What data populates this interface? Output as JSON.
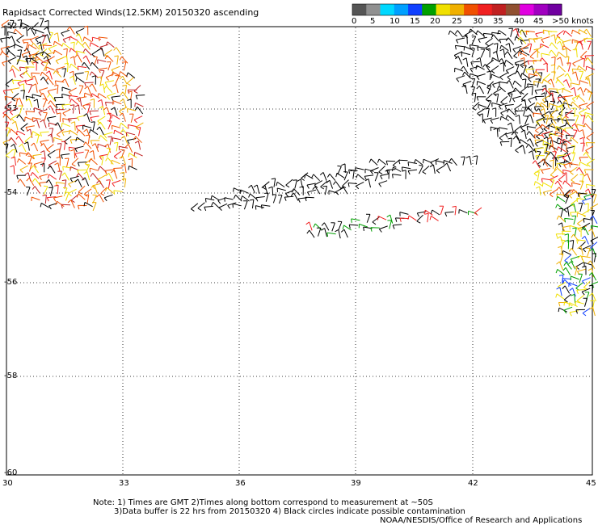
{
  "title": "Rapidsact Corrected Winds(12.5KM) 20150320 ascending",
  "color_scale": {
    "colors": [
      "#555555",
      "#909090",
      "#00d8ff",
      "#00a0ff",
      "#1040ff",
      "#00a000",
      "#f0e000",
      "#f0b000",
      "#f05000",
      "#f02020",
      "#c02020",
      "#905030",
      "#e000e0",
      "#a000c0",
      "#7000a0"
    ],
    "labels": [
      "0",
      "5",
      "10",
      "15",
      "20",
      "25",
      "30",
      "35",
      "40",
      "45",
      ">50 knots"
    ]
  },
  "map": {
    "lat_labels": [
      "-52",
      "-53",
      "-54",
      "-56",
      "-58",
      "-60"
    ],
    "lon_labels": [
      "30",
      "33",
      "36",
      "39",
      "42",
      "45"
    ]
  },
  "notes": {
    "line1": "Note: 1) Times are GMT 2)Times along bottom correspond to measurement at ~50S",
    "line2": "3)Data buffer is 22 hrs from 20150320 4) Black circles indicate possible contamination",
    "line3": "NOAA/NESDIS/Office of Research and Applications"
  }
}
